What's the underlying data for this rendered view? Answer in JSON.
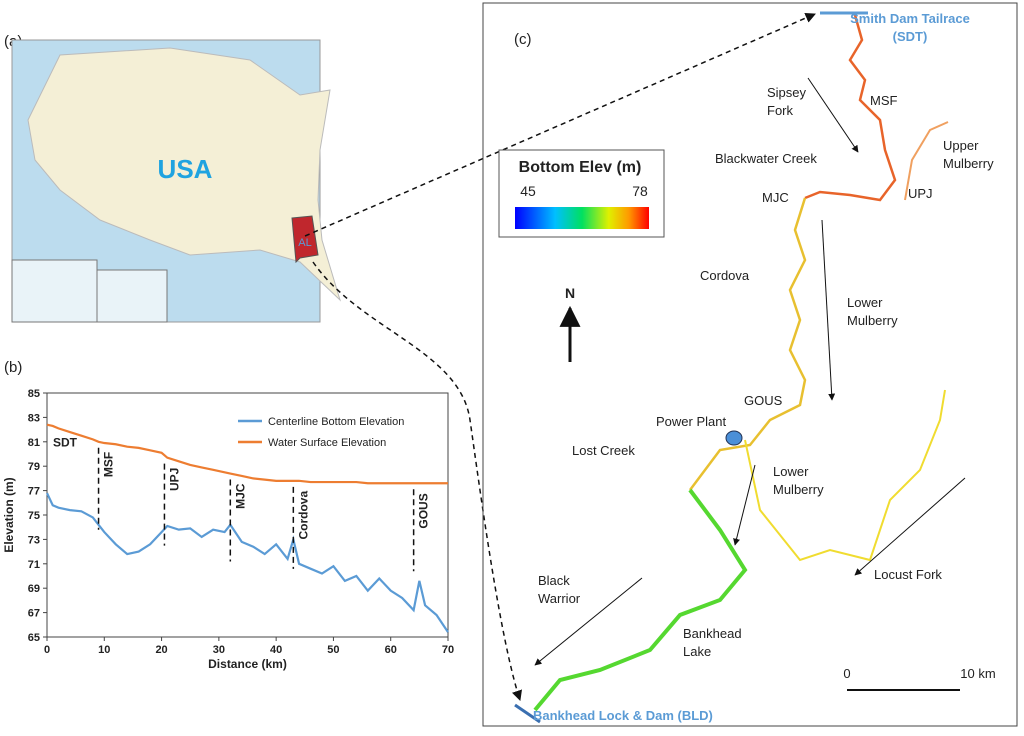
{
  "map_a": {
    "label": "(a)",
    "country": "USA",
    "state": "AL"
  },
  "chart_data": {
    "type": "line",
    "panel_label": "(b)",
    "xlabel": "Distance (km)",
    "ylabel": "Elevation (m)",
    "x": [
      0,
      1,
      2,
      4,
      6,
      8,
      9,
      10,
      12,
      14,
      16,
      18,
      20,
      21,
      23,
      25,
      27,
      29,
      31,
      32,
      34,
      36,
      38,
      40,
      42,
      43,
      44,
      46,
      48,
      50,
      52,
      54,
      56,
      58,
      60,
      62,
      64,
      65,
      66,
      68,
      70
    ],
    "series": [
      {
        "name": "Centerline Bottom Elevation",
        "color": "#5b9bd5",
        "values": [
          76.8,
          75.8,
          75.6,
          75.4,
          75.3,
          74.8,
          74.2,
          73.6,
          72.6,
          71.8,
          72.0,
          72.6,
          73.6,
          74.1,
          73.8,
          73.9,
          73.2,
          73.8,
          73.6,
          74.2,
          72.8,
          72.4,
          71.8,
          72.6,
          71.4,
          73.0,
          71.0,
          70.6,
          70.2,
          70.8,
          69.6,
          70.0,
          68.8,
          69.8,
          68.8,
          68.2,
          67.2,
          69.6,
          67.6,
          66.8,
          65.4
        ]
      },
      {
        "name": "Water Surface Elevation",
        "color": "#ed7d31",
        "values": [
          82.4,
          82.3,
          82.1,
          81.8,
          81.5,
          81.2,
          81.0,
          80.9,
          80.8,
          80.6,
          80.5,
          80.3,
          80.1,
          79.7,
          79.4,
          79.1,
          78.9,
          78.7,
          78.5,
          78.4,
          78.2,
          78.0,
          77.9,
          77.8,
          77.8,
          77.8,
          77.8,
          77.7,
          77.7,
          77.7,
          77.7,
          77.7,
          77.6,
          77.6,
          77.6,
          77.6,
          77.6,
          77.6,
          77.6,
          77.6,
          77.6
        ]
      }
    ],
    "xlim": [
      0,
      70
    ],
    "xticks": [
      0,
      10,
      20,
      30,
      40,
      50,
      60,
      70
    ],
    "ylim": [
      65,
      85
    ],
    "yticks": [
      65,
      67,
      69,
      71,
      73,
      75,
      77,
      79,
      81,
      83,
      85
    ],
    "annotations": [
      {
        "label": "SDT",
        "x": 0
      },
      {
        "label": "MSF",
        "x": 9
      },
      {
        "label": "UPJ",
        "x": 20.5
      },
      {
        "label": "MJC",
        "x": 32
      },
      {
        "label": "Cordova",
        "x": 43
      },
      {
        "label": "GOUS",
        "x": 64
      }
    ],
    "legend": "upper right"
  },
  "map_c": {
    "label": "(c)",
    "north": "N",
    "colorbar": {
      "title": "Bottom Elev (m)",
      "min": 45,
      "max": 78
    },
    "places": [
      [
        "Smith  Dam Tailrace",
        "(SDT)"
      ],
      [
        "MSF"
      ],
      [
        "Sipsey",
        "Fork"
      ],
      [
        "Upper",
        "Mulberry"
      ],
      [
        "Blackwater Creek"
      ],
      [
        "MJC"
      ],
      [
        "UPJ"
      ],
      [
        "Cordova"
      ],
      [
        "Lower",
        "Mulberry"
      ],
      [
        "GOUS"
      ],
      [
        "Power Plant"
      ],
      [
        "Lost Creek"
      ],
      [
        "Lower",
        "Mulberry"
      ],
      [
        "Black",
        "Warrior"
      ],
      [
        "Bankhead",
        "Lake"
      ],
      [
        "Locust Fork"
      ],
      [
        "Bankhead Lock & Dam (BLD)"
      ]
    ],
    "scale": [
      "0",
      "10 km"
    ]
  }
}
